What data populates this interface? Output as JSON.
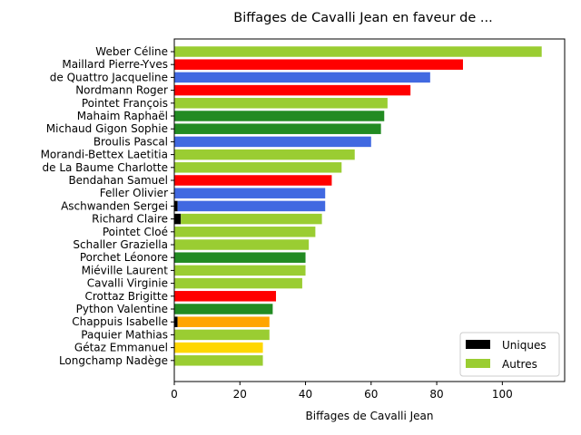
{
  "chart_data": {
    "type": "bar",
    "orientation": "horizontal",
    "stacked": true,
    "title": "Biffages de Cavalli Jean en faveur de ...",
    "xlabel": "Biffages de Cavalli Jean",
    "ylabel": "",
    "xlim": [
      0,
      119
    ],
    "xticks": [
      0,
      20,
      40,
      60,
      80,
      100
    ],
    "grid": false,
    "legend_position": "bottom-right",
    "categories": [
      "Weber Céline",
      "Maillard Pierre-Yves",
      "de Quattro Jacqueline",
      "Nordmann Roger",
      "Pointet François",
      "Mahaim Raphaël",
      "Michaud Gigon Sophie",
      "Broulis Pascal",
      "Morandi-Bettex Laetitia",
      "de La Baume Charlotte",
      "Bendahan Samuel",
      "Feller Olivier",
      "Aschwanden Sergei",
      "Richard Claire",
      "Pointet Cloé",
      "Schaller Graziella",
      "Porchet Léonore",
      "Miéville Laurent",
      "Cavalli Virginie",
      "Crottaz Brigitte",
      "Python Valentine",
      "Chappuis Isabelle",
      "Paquier Mathias",
      "Gétaz Emmanuel",
      "Longchamp Nadège"
    ],
    "series": [
      {
        "name": "Uniques",
        "color": "#000000",
        "values": [
          0,
          0,
          0,
          0,
          0,
          0,
          0,
          0,
          0,
          0,
          0,
          0,
          1,
          2,
          0,
          0,
          0,
          0,
          0,
          0,
          0,
          1,
          0,
          0,
          0
        ]
      },
      {
        "name": "Autres",
        "color": "#9acd32",
        "values": [
          112,
          88,
          78,
          72,
          65,
          64,
          63,
          60,
          55,
          51,
          48,
          46,
          45,
          43,
          43,
          41,
          40,
          40,
          39,
          31,
          30,
          28,
          29,
          27,
          27
        ]
      }
    ],
    "bar_colors": [
      "#9acd32",
      "#ff0000",
      "#4169e1",
      "#ff0000",
      "#9acd32",
      "#228b22",
      "#228b22",
      "#4169e1",
      "#9acd32",
      "#9acd32",
      "#ff0000",
      "#4169e1",
      "#4169e1",
      "#9acd32",
      "#9acd32",
      "#9acd32",
      "#228b22",
      "#9acd32",
      "#9acd32",
      "#ff0000",
      "#228b22",
      "#ffa500",
      "#9acd32",
      "#ffd700",
      "#9acd32"
    ]
  }
}
